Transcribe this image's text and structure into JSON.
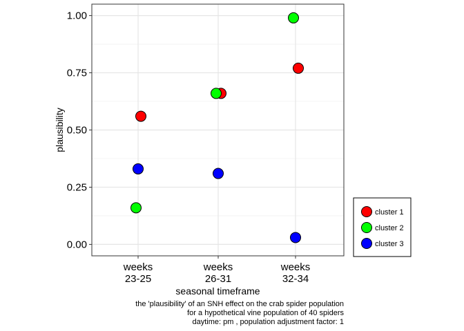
{
  "chart_data": {
    "type": "scatter",
    "title": "",
    "xlabel": "seasonal timeframe",
    "ylabel": "plausibility",
    "categories": [
      [
        "weeks",
        "23-25"
      ],
      [
        "weeks",
        "26-31"
      ],
      [
        "weeks",
        "32-34"
      ]
    ],
    "ylim": [
      -0.05,
      1.05
    ],
    "yticks": [
      "0.00",
      "0.25",
      "0.50",
      "0.75",
      "1.00"
    ],
    "grid": true,
    "legend_position": "right",
    "series": [
      {
        "name": "cluster 1",
        "color": "#ff0000",
        "points": [
          {
            "category": 0,
            "y": 0.56
          },
          {
            "category": 1,
            "y": 0.66
          },
          {
            "category": 2,
            "y": 0.77
          }
        ]
      },
      {
        "name": "cluster 2",
        "color": "#00ff00",
        "points": [
          {
            "category": 0,
            "y": 0.16
          },
          {
            "category": 1,
            "y": 0.66
          },
          {
            "category": 2,
            "y": 0.99
          }
        ]
      },
      {
        "name": "cluster 3",
        "color": "#0000ff",
        "points": [
          {
            "category": 0,
            "y": 0.33
          },
          {
            "category": 1,
            "y": 0.31
          },
          {
            "category": 2,
            "y": 0.03
          }
        ]
      }
    ],
    "caption": [
      "the 'plausibility' of an SNH effect on the crab spider population",
      "for a hypothetical vine population of 40 spiders",
      "daytime: pm , population adjustment factor: 1"
    ]
  }
}
